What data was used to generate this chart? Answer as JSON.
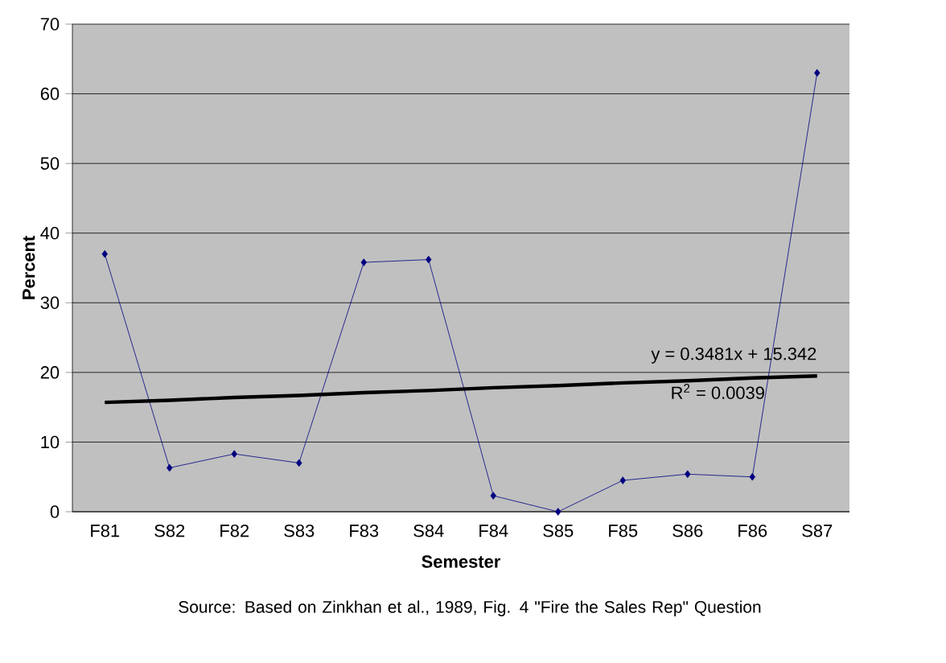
{
  "chart_data": {
    "type": "line",
    "xlabel": "Semester",
    "ylabel": "Percent",
    "categories": [
      "F81",
      "S82",
      "F82",
      "S83",
      "F83",
      "S84",
      "F84",
      "S85",
      "F85",
      "S86",
      "F86",
      "S87"
    ],
    "series": [
      {
        "color": "#000080",
        "marker": "diamond",
        "values": [
          37,
          6.3,
          8.3,
          7,
          35.8,
          36.2,
          2.3,
          0,
          4.5,
          5.4,
          5,
          63
        ]
      },
      {
        "color": "#000000",
        "marker": "none",
        "values": [
          15.7,
          16.0,
          16.4,
          16.7,
          17.1,
          17.4,
          17.8,
          18.1,
          18.5,
          18.8,
          19.2,
          19.5
        ]
      }
    ],
    "ylim": [
      0,
      70
    ],
    "yticks": [
      0,
      10,
      20,
      30,
      40,
      50,
      60,
      70
    ],
    "grid": "y",
    "line_style": "solid",
    "annotations": [
      "y = 0.3481x + 15.342",
      "R$^{2}$ = 0.0039",
      "Source:  Based on Zinkhan et al., 1989, Fig. 4 \"Fire the Sales Rep\" Question"
    ]
  }
}
